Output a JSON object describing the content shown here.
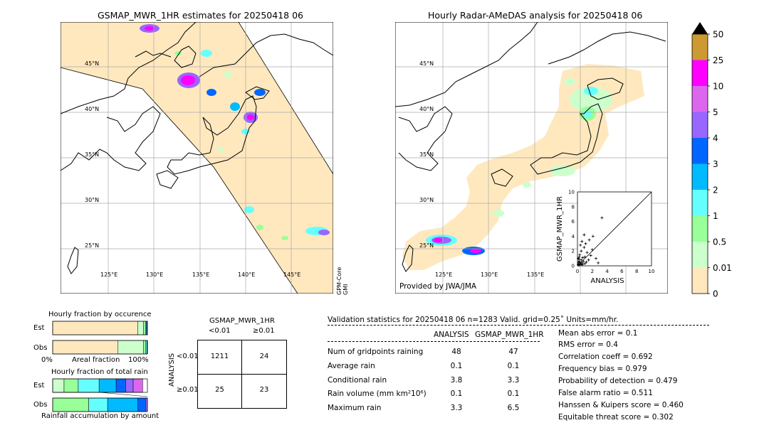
{
  "left_map": {
    "title": "GSMAP_MWR_1HR estimates for 20250418 06",
    "lat_labels": [
      "45°N",
      "40°N",
      "35°N",
      "30°N",
      "25°N"
    ],
    "lon_labels": [
      "125°E",
      "130°E",
      "135°E",
      "140°E",
      "145°E"
    ],
    "sensor_label": "GPM-Core\nGMI"
  },
  "right_map": {
    "title": "Hourly Radar-AMeDAS analysis for 20250418 06",
    "lat_labels": [
      "45°N",
      "40°N",
      "35°N",
      "30°N",
      "25°N"
    ],
    "lon_labels": [
      "125°E",
      "130°E",
      "135°E"
    ],
    "provider": "Provided by JWA/JMA"
  },
  "colorbar": {
    "labels": [
      "50",
      "25",
      "10",
      "5",
      "4",
      "3",
      "2",
      "1",
      "0.5",
      "0.01",
      "0"
    ],
    "colors": [
      "#cc9933",
      "#ff00ff",
      "#dd66ee",
      "#9966ff",
      "#0066ff",
      "#00bbff",
      "#66ffff",
      "#99ff99",
      "#ccffcc",
      "#ffe8be"
    ]
  },
  "chart_data": [
    {
      "type": "scatter",
      "xlabel": "ANALYSIS",
      "ylabel": "GSMAP_MWR_1HR",
      "xlim": [
        0,
        10
      ],
      "ylim": [
        0,
        10
      ],
      "ticks": [
        "0",
        "2",
        "4",
        "6",
        "8",
        "10"
      ],
      "points": [
        [
          0.1,
          0.2
        ],
        [
          0.2,
          0.1
        ],
        [
          0.3,
          0.5
        ],
        [
          0.4,
          0.3
        ],
        [
          0.5,
          0.8
        ],
        [
          0.6,
          0.4
        ],
        [
          0.2,
          0.9
        ],
        [
          0.8,
          0.6
        ],
        [
          1.0,
          1.2
        ],
        [
          0.3,
          1.5
        ],
        [
          0.5,
          2.0
        ],
        [
          0.7,
          1.1
        ],
        [
          1.2,
          0.5
        ],
        [
          1.5,
          0.8
        ],
        [
          0.9,
          2.5
        ],
        [
          1.1,
          3.0
        ],
        [
          2.0,
          2.2
        ],
        [
          0.4,
          2.8
        ],
        [
          1.8,
          1.4
        ],
        [
          2.5,
          1.0
        ],
        [
          0.6,
          3.3
        ],
        [
          1.3,
          1.8
        ],
        [
          0.2,
          0.6
        ],
        [
          0.1,
          1.0
        ],
        [
          3.3,
          6.5
        ],
        [
          2.1,
          4.0
        ],
        [
          0.9,
          4.2
        ],
        [
          1.6,
          3.5
        ],
        [
          0.35,
          0.25
        ],
        [
          0.15,
          0.45
        ],
        [
          0.55,
          0.15
        ],
        [
          0.25,
          1.2
        ],
        [
          2.8,
          0.4
        ],
        [
          1.0,
          0.3
        ],
        [
          0.7,
          0.2
        ]
      ]
    },
    {
      "type": "bar",
      "title": "Hourly fraction by occurence",
      "categories": [
        "Est",
        "Obs"
      ],
      "xlabel_left": "0%",
      "xlabel_mid": "Areal fraction",
      "xlabel_right": "100%",
      "series": [
        {
          "values": [
            0.9,
            0.69
          ]
        },
        {
          "values": [
            0.06,
            0.27
          ]
        },
        {
          "values": [
            0.02,
            0.02
          ]
        },
        {
          "values": [
            0.01,
            0.015
          ]
        },
        {
          "values": [
            0.01,
            0.005
          ]
        }
      ],
      "colors": [
        "#ffe8be",
        "#ccffcc",
        "#99ff99",
        "#66ffff",
        "#0066ff"
      ]
    },
    {
      "type": "bar",
      "title": "Hourly fraction of total rain",
      "categories": [
        "Est",
        "Obs"
      ],
      "xlabel": "Rainfall accumulation by amount",
      "series": [
        {
          "values": [
            0.12,
            0.0
          ]
        },
        {
          "values": [
            0.15,
            0.38
          ]
        },
        {
          "values": [
            0.22,
            0.2
          ]
        },
        {
          "values": [
            0.18,
            0.32
          ]
        },
        {
          "values": [
            0.1,
            0.08
          ]
        },
        {
          "values": [
            0.08,
            0.02
          ]
        },
        {
          "values": [
            0.1,
            0.0
          ]
        }
      ],
      "colors": [
        "#ccffcc",
        "#99ff99",
        "#66ffff",
        "#00bbff",
        "#0066ff",
        "#9966ff",
        "#dd66ee"
      ]
    }
  ],
  "contingency": {
    "title": "GSMAP_MWR_1HR",
    "col_headers": [
      "<0.01",
      "≥0.01"
    ],
    "row_label": "ANALYSIS",
    "row_headers": [
      "<0.01",
      "≥0.01"
    ],
    "cells": [
      [
        "1211",
        "24"
      ],
      [
        "25",
        "23"
      ]
    ]
  },
  "validation": {
    "header": "Validation statistics for 20250418 06  n=1283 Valid. grid=0.25˚ Units=mm/hr.",
    "col_analysis": "ANALYSIS",
    "col_gsmap": "GSMAP_MWR_1HR",
    "rows": [
      {
        "label": "Num of gridpoints raining",
        "a": "48",
        "g": "47"
      },
      {
        "label": "Average rain",
        "a": "0.1",
        "g": "0.1"
      },
      {
        "label": "Conditional rain",
        "a": "3.8",
        "g": "3.3"
      },
      {
        "label": "Rain volume (mm km²10⁶)",
        "a": "0.1",
        "g": "0.1"
      },
      {
        "label": "Maximum rain",
        "a": "3.3",
        "g": "6.5"
      }
    ],
    "scores": [
      "Mean abs error =    0.1",
      "RMS error =    0.4",
      "Correlation coeff =  0.692",
      "Frequency bias =  0.979",
      "Probability of detection =  0.479",
      "False alarm ratio =  0.511",
      "Hanssen & Kuipers score =  0.460",
      "Equitable threat score =  0.302"
    ]
  }
}
